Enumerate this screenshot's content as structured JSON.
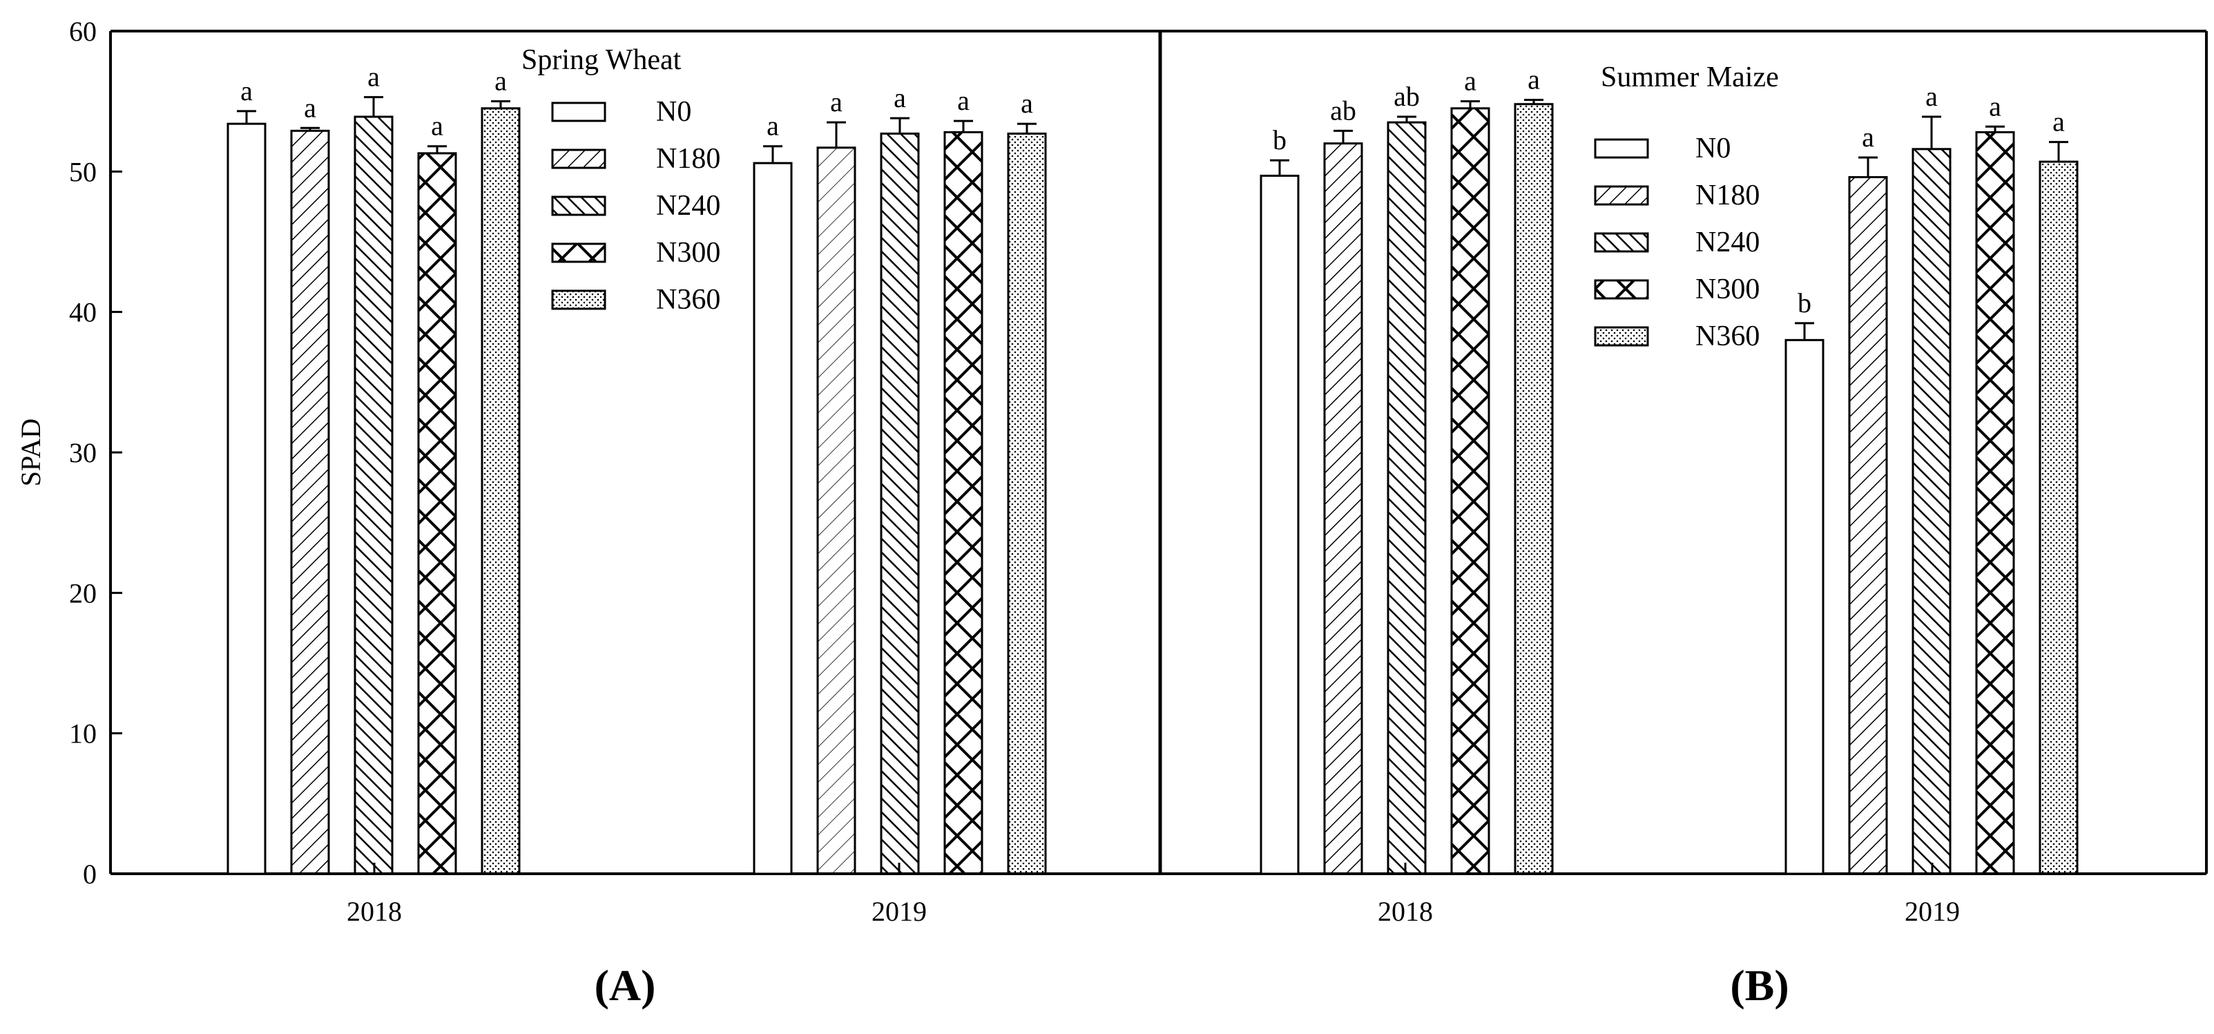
{
  "chart_data": {
    "type": "bar",
    "ylabel": "SPAD",
    "ylim": [
      0,
      60
    ],
    "yticks": [
      0,
      10,
      20,
      30,
      40,
      50,
      60
    ],
    "series_names": [
      "N0",
      "N180",
      "N240",
      "N300",
      "N360"
    ],
    "panels": [
      {
        "title": "Spring Wheat",
        "panel_label": "A",
        "categories": [
          "2018",
          "2019"
        ],
        "legend_position": "top-center",
        "groups": [
          {
            "category": "2018",
            "values": [
              53.4,
              52.9,
              53.9,
              51.3,
              54.5
            ],
            "errors": [
              0.9,
              0.2,
              1.4,
              0.5,
              0.5
            ],
            "letters": [
              "a",
              "a",
              "a",
              "a",
              "a"
            ]
          },
          {
            "category": "2019",
            "values": [
              50.6,
              51.7,
              52.7,
              52.8,
              52.7
            ],
            "errors": [
              1.2,
              1.8,
              1.1,
              0.8,
              0.7
            ],
            "letters": [
              "a",
              "a",
              "a",
              "a",
              "a"
            ]
          }
        ]
      },
      {
        "title": "Summer Maize",
        "panel_label": "B",
        "categories": [
          "2018",
          "2019"
        ],
        "legend_position": "top-center",
        "groups": [
          {
            "category": "2018",
            "values": [
              49.7,
              52.0,
              53.5,
              54.5,
              54.8
            ],
            "errors": [
              1.1,
              0.9,
              0.4,
              0.5,
              0.3
            ],
            "letters": [
              "b",
              "ab",
              "ab",
              "a",
              "a"
            ]
          },
          {
            "category": "2019",
            "values": [
              38.0,
              49.6,
              51.6,
              52.8,
              50.7
            ],
            "errors": [
              1.2,
              1.4,
              2.3,
              0.4,
              1.4
            ],
            "letters": [
              "b",
              "a",
              "a",
              "a",
              "a"
            ]
          }
        ]
      }
    ]
  }
}
